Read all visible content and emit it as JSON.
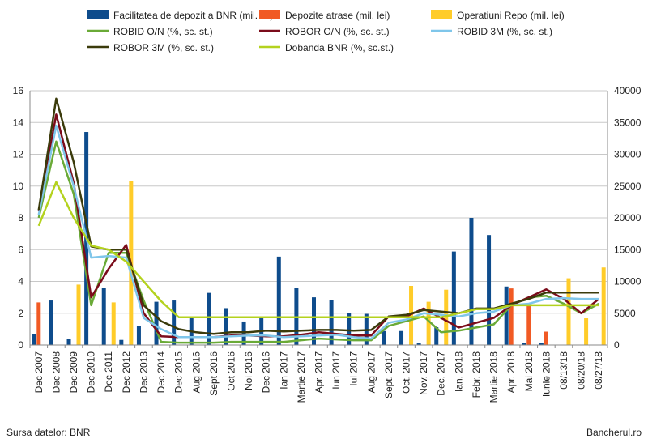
{
  "chart_data": {
    "type": "bar+line",
    "categories": [
      "Dec 2007",
      "Dec 2008",
      "Dec 2009",
      "Dec 2010",
      "Dec 2011",
      "Dec 2012",
      "Dec 2013",
      "Dec 2014",
      "Dec 2015",
      "Aug 2016",
      "Sept 2016",
      "Oct 2016",
      "Noi 2016",
      "Dec 2016",
      "Ian 2017",
      "Martie 2017",
      "Apr. 2017",
      "Iun 2017",
      "Iul 2017",
      "Aug 2017",
      "Sept. 2017",
      "Oct. 2017",
      "Nov. 2017",
      "Dec. 2017",
      "Ian. 2018",
      "Febr. 2018",
      "Martie 2018",
      "Apr. 2018",
      "Mai 2018",
      "Iunie 2018",
      "08/13/18",
      "08/20/18",
      "08/27/18"
    ],
    "left_axis": {
      "min": 0,
      "max": 16,
      "ticks": [
        0,
        2,
        4,
        6,
        8,
        10,
        12,
        14,
        16
      ]
    },
    "right_axis": {
      "min": 0,
      "max": 40000,
      "ticks": [
        0,
        5000,
        10000,
        15000,
        20000,
        25000,
        30000,
        35000,
        40000
      ]
    },
    "bar_series": [
      {
        "name": "Facilitatea de depozit a BNR (mil. lei)",
        "color": "#0e4c8c",
        "axis": "right",
        "values": [
          1700,
          7000,
          1000,
          33500,
          9000,
          800,
          3000,
          6800,
          7000,
          4200,
          8200,
          5800,
          3700,
          4200,
          13900,
          9000,
          7500,
          7100,
          5000,
          4900,
          2200,
          2200,
          250,
          2800,
          14700,
          20000,
          17300,
          9200,
          300,
          300,
          0,
          0,
          0
        ]
      },
      {
        "name": "Depozite atrase (mil. lei)",
        "color": "#f15a24",
        "axis": "right",
        "values": [
          6700,
          0,
          0,
          0,
          0,
          0,
          0,
          0,
          0,
          0,
          0,
          0,
          0,
          0,
          0,
          0,
          0,
          0,
          0,
          0,
          0,
          0,
          0,
          0,
          0,
          0,
          0,
          8900,
          6600,
          2100,
          0,
          0,
          0
        ]
      },
      {
        "name": "Operatiuni Repo (mil. lei)",
        "color": "#ffcc29",
        "axis": "right",
        "values": [
          0,
          0,
          9500,
          0,
          6700,
          25800,
          0,
          0,
          0,
          0,
          0,
          0,
          0,
          0,
          0,
          0,
          0,
          0,
          0,
          0,
          0,
          9300,
          6800,
          8700,
          0,
          0,
          0,
          0,
          0,
          0,
          10500,
          4200,
          12200
        ]
      }
    ],
    "line_series": [
      {
        "name": "ROBID O/N (%, sc. st.)",
        "color": "#6aaa37",
        "axis": "left",
        "values": [
          8.0,
          12.8,
          9.5,
          2.5,
          5.8,
          5.8,
          2.8,
          0.2,
          0.15,
          0.15,
          0.15,
          0.2,
          0.2,
          0.2,
          0.2,
          0.3,
          0.4,
          0.35,
          0.3,
          0.3,
          1.2,
          1.5,
          1.8,
          0.8,
          0.9,
          1.1,
          1.3,
          2.5,
          3.0,
          3.1,
          2.6,
          2.0,
          2.6
        ]
      },
      {
        "name": "ROBOR O/N (%, sc. st.)",
        "color": "#7b0c1b",
        "axis": "left",
        "values": [
          8.4,
          14.5,
          10.2,
          3.0,
          4.8,
          6.3,
          2.0,
          0.55,
          0.5,
          0.5,
          0.5,
          0.6,
          0.6,
          0.55,
          0.55,
          0.65,
          0.8,
          0.7,
          0.6,
          0.6,
          1.8,
          1.8,
          2.3,
          1.7,
          1.1,
          1.4,
          1.7,
          2.5,
          3.0,
          3.5,
          2.9,
          2.0,
          2.9
        ]
      },
      {
        "name": "ROBID 3M (%, sc. st.)",
        "color": "#7fc6ea",
        "axis": "left",
        "values": [
          8.2,
          13.8,
          10.0,
          5.5,
          5.6,
          5.5,
          1.7,
          1.0,
          0.5,
          0.5,
          0.5,
          0.55,
          0.6,
          0.6,
          0.5,
          0.55,
          0.6,
          0.65,
          0.5,
          0.4,
          1.4,
          1.6,
          2.0,
          1.9,
          1.8,
          2.0,
          2.1,
          2.5,
          2.6,
          2.9,
          2.95,
          2.9,
          2.9
        ]
      },
      {
        "name": "ROBOR 3M (%, sc. st.)",
        "color": "#3b3b0b",
        "axis": "left",
        "values": [
          8.5,
          15.5,
          11.5,
          6.2,
          6.0,
          6.0,
          2.5,
          1.5,
          1.0,
          0.8,
          0.7,
          0.8,
          0.8,
          0.9,
          0.85,
          0.9,
          0.95,
          0.95,
          0.9,
          0.95,
          1.8,
          1.9,
          2.2,
          2.1,
          2.0,
          2.3,
          2.3,
          2.6,
          2.9,
          3.3,
          3.3,
          3.3,
          3.3
        ]
      },
      {
        "name": "Dobanda BNR (%, sc.st.)",
        "color": "#b4d21e",
        "axis": "left",
        "values": [
          7.5,
          10.25,
          8.0,
          6.25,
          6.0,
          5.25,
          4.0,
          2.75,
          1.75,
          1.75,
          1.75,
          1.75,
          1.75,
          1.75,
          1.75,
          1.75,
          1.75,
          1.75,
          1.75,
          1.75,
          1.75,
          1.75,
          1.75,
          1.75,
          2.0,
          2.25,
          2.25,
          2.5,
          2.5,
          2.5,
          2.5,
          2.5,
          2.5
        ]
      }
    ]
  },
  "footer": {
    "source": "Sursa datelor: BNR",
    "brand": "Bancherul.ro"
  }
}
